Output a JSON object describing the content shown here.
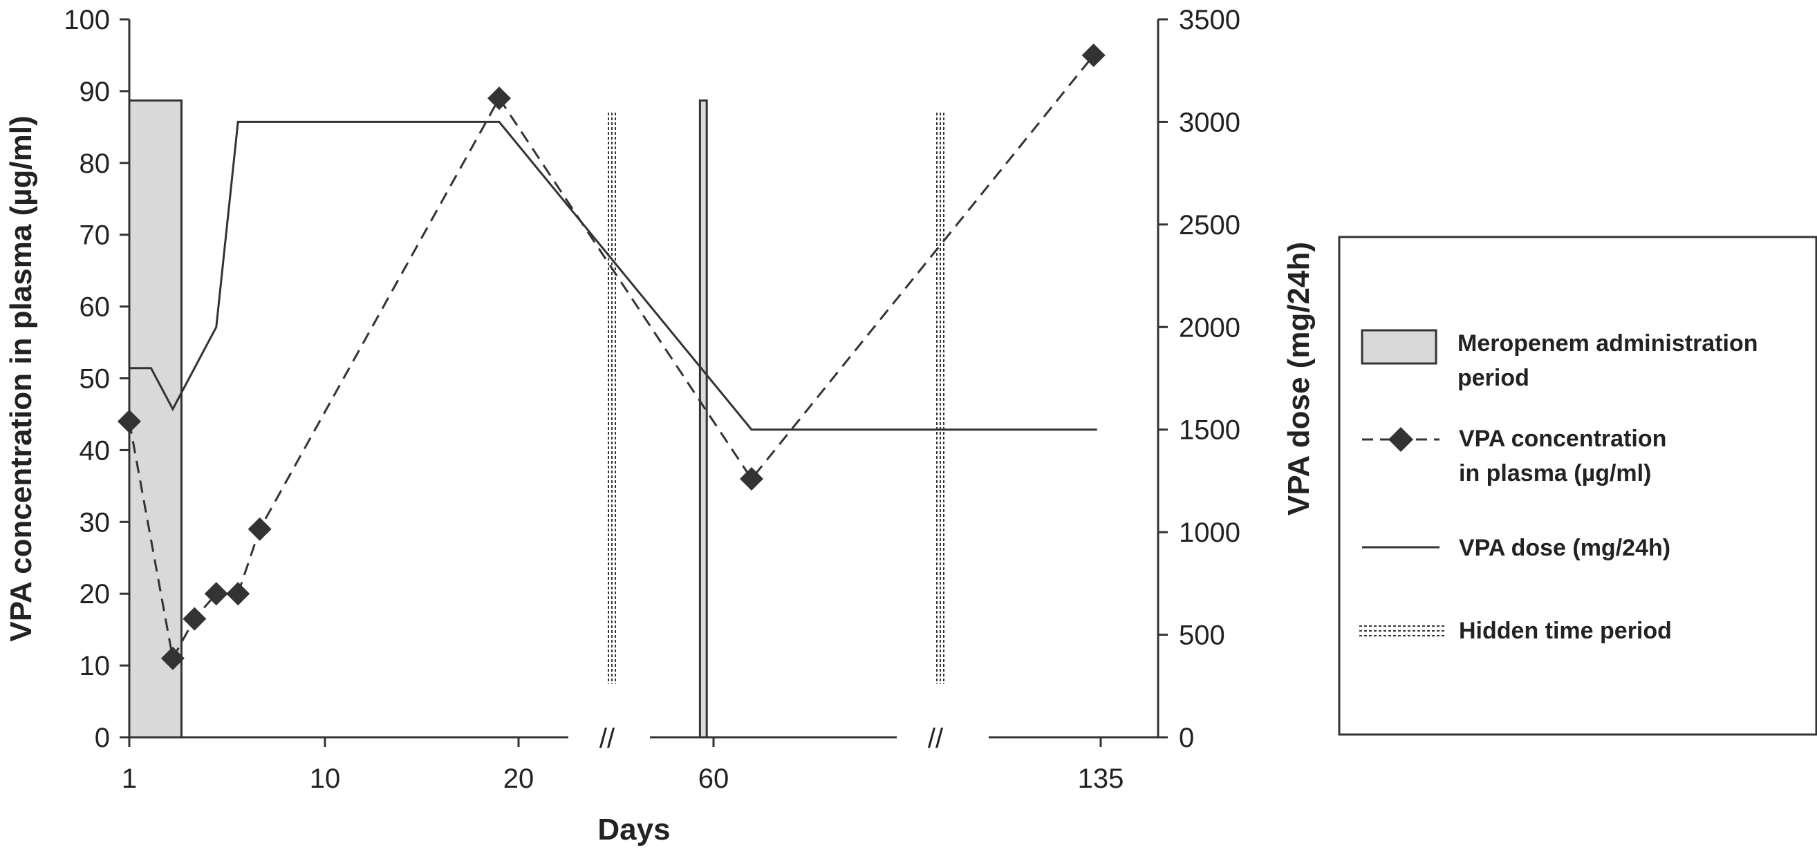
{
  "chart_data": {
    "type": "line",
    "xlabel": "Days",
    "ylabel_left": "VPA concentration in plasma (µg/ml)",
    "ylabel_right": "VPA dose (mg/24h)",
    "x_tick_labels": [
      "1",
      "10",
      "20",
      "60",
      "135"
    ],
    "x_ticks": [
      1,
      10,
      20,
      60,
      135
    ],
    "y_left_range": [
      0,
      100
    ],
    "y_left_ticks": [
      "0",
      "10",
      "20",
      "30",
      "40",
      "50",
      "60",
      "70",
      "80",
      "90",
      "100"
    ],
    "y_right_range": [
      0,
      3500
    ],
    "y_right_ticks": [
      "0",
      "500",
      "1000",
      "1500",
      "2000",
      "2500",
      "3000",
      "3500"
    ],
    "axis_break_marks": [
      "//",
      "//"
    ],
    "legend_position": "right",
    "colors": {
      "meropenem_fill": "#d9d9d9",
      "series": "#333333"
    },
    "meropenem_periods": [
      {
        "start_day": 1,
        "end_day": 3.4
      },
      {
        "start_day": 56,
        "end_day": 58
      }
    ],
    "hidden_time_periods": [
      "between day 20 and day 60",
      "between day 60 and day 135"
    ],
    "series": [
      {
        "name": "VPA concentration in plasma (µg/ml)",
        "axis": "left",
        "style": "dashed with diamond markers",
        "points": [
          {
            "day": 1,
            "value": 44
          },
          {
            "day": 3,
            "value": 11
          },
          {
            "day": 4,
            "value": 16.5
          },
          {
            "day": 5,
            "value": 20
          },
          {
            "day": 6,
            "value": 20
          },
          {
            "day": 7,
            "value": 29
          },
          {
            "day": 19,
            "value": 89
          },
          {
            "day": 65,
            "value": 36
          },
          {
            "day": 133,
            "value": 95
          }
        ]
      },
      {
        "name": "VPA dose (mg/24h)",
        "axis": "right",
        "style": "solid",
        "points": [
          {
            "day": 1,
            "value": 1800
          },
          {
            "day": 2,
            "value": 1800
          },
          {
            "day": 3,
            "value": 1600
          },
          {
            "day": 5,
            "value": 2000
          },
          {
            "day": 6,
            "value": 3000
          },
          {
            "day": 19,
            "value": 3000
          },
          {
            "day": 65,
            "value": 1500
          },
          {
            "day": 134,
            "value": 1500
          }
        ]
      }
    ]
  },
  "legend": {
    "meropenem_line1": "Meropenem administration",
    "meropenem_line2": "period",
    "vpa_conc_line1": "VPA concentration",
    "vpa_conc_line2": "in plasma (µg/ml)",
    "vpa_dose": "VPA dose (mg/24h)",
    "hidden": "Hidden time period"
  }
}
